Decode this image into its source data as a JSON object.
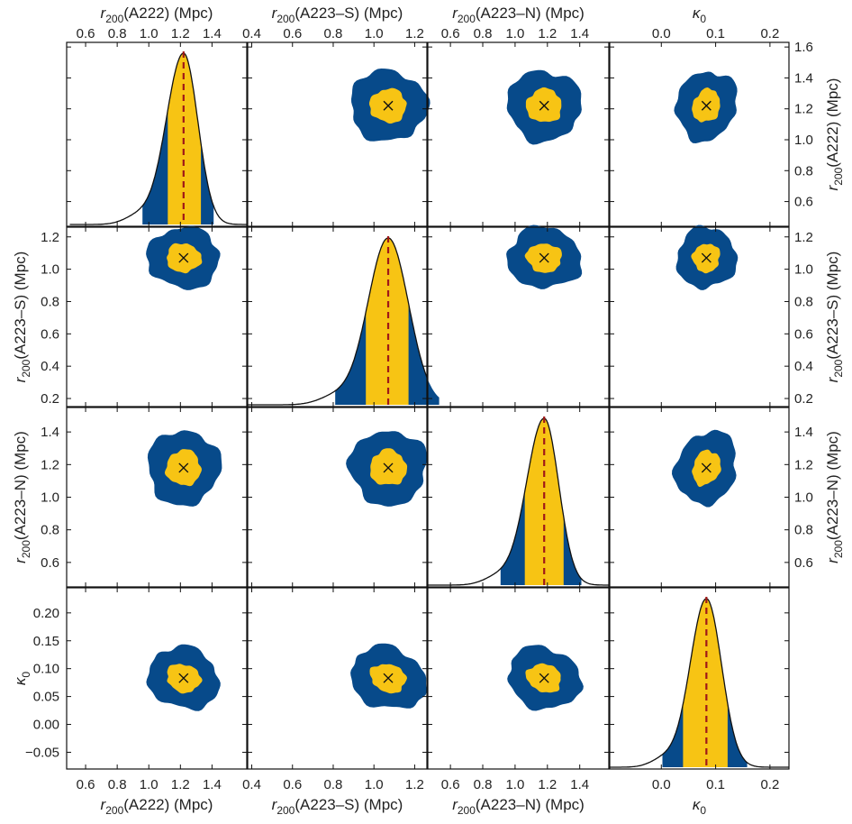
{
  "chart_data": {
    "type": "corner",
    "colors": {
      "inner": "#F7C414",
      "outer": "#074A8A",
      "line": "#111111",
      "median": "#A01818",
      "marker": "#111111",
      "frame": "#111111"
    },
    "labels": {
      "p0": {
        "sym": "r",
        "sub": "200",
        "rest": "(A222) (Mpc)",
        "short": "(A222)"
      },
      "p1": {
        "sym": "r",
        "sub": "200",
        "rest": "(A223–S) (Mpc)",
        "short": "(A223–S)"
      },
      "p2": {
        "sym": "r",
        "sub": "200",
        "rest": "(A223–N) (Mpc)",
        "short": "(A223–N)"
      },
      "p3": {
        "sym": "κ",
        "sub": "0",
        "rest": "",
        "short": ""
      }
    },
    "params": [
      {
        "name": "r200(A222)",
        "unit": "Mpc",
        "col_range": [
          0.48,
          1.62
        ],
        "row_range": [
          0.44,
          1.63
        ],
        "col_ticks": [
          "0.6",
          "0.8",
          "1.0",
          "1.2",
          "1.4"
        ],
        "row_ticks": [
          "0.6",
          "0.8",
          "1.0",
          "1.2",
          "1.4",
          "1.6"
        ],
        "best": 1.22,
        "contours": {
          "inner_rx": 0.11,
          "outer_rx": 0.23
        },
        "posterior": {
          "peak": 1.22,
          "sigma_left": 0.11,
          "sigma_right": 0.09,
          "inner": [
            1.12,
            1.33
          ],
          "outer": [
            0.96,
            1.41
          ],
          "tail_left": 0.5,
          "tail_right": 1.62
        }
      },
      {
        "name": "r200(A223-S)",
        "unit": "Mpc",
        "col_range": [
          0.38,
          1.26
        ],
        "row_range": [
          0.15,
          1.26
        ],
        "col_ticks": [
          "0.4",
          "0.6",
          "0.8",
          "1.0",
          "1.2"
        ],
        "row_ticks": [
          "0.2",
          "0.4",
          "0.6",
          "0.8",
          "1.0",
          "1.2"
        ],
        "best": 1.07,
        "contours": {
          "inner_rx": 0.09,
          "outer_rx": 0.19
        },
        "posterior": {
          "peak": 1.07,
          "sigma_left": 0.1,
          "sigma_right": 0.1,
          "inner": [
            0.96,
            1.17
          ],
          "outer": [
            0.81,
            1.32
          ],
          "tail_left": 0.38,
          "tail_right": 1.26
        }
      },
      {
        "name": "r200(A223-N)",
        "unit": "Mpc",
        "col_range": [
          0.46,
          1.58
        ],
        "row_range": [
          0.45,
          1.55
        ],
        "col_ticks": [
          "0.6",
          "0.8",
          "1.0",
          "1.2",
          "1.4"
        ],
        "row_ticks": [
          "0.6",
          "0.8",
          "1.0",
          "1.2",
          "1.4"
        ],
        "best": 1.18,
        "contours": {
          "inner_rx": 0.11,
          "outer_rx": 0.23
        },
        "posterior": {
          "peak": 1.18,
          "sigma_left": 0.11,
          "sigma_right": 0.09,
          "inner": [
            1.06,
            1.3
          ],
          "outer": [
            0.91,
            1.41
          ],
          "tail_left": 0.46,
          "tail_right": 1.58
        }
      },
      {
        "name": "kappa0",
        "unit": "",
        "col_range": [
          -0.095,
          0.235
        ],
        "row_range": [
          -0.08,
          0.245
        ],
        "col_ticks": [
          "0.0",
          "0.1",
          "0.2"
        ],
        "row_ticks": [
          "−0.05",
          "0.00",
          "0.05",
          "0.10",
          "0.15",
          "0.20"
        ],
        "best": 0.083,
        "contours": {
          "inner_rx": 0.025,
          "outer_rx": 0.055
        },
        "posterior": {
          "peak": 0.083,
          "sigma_left": 0.03,
          "sigma_right": 0.028,
          "inner": [
            0.04,
            0.122
          ],
          "outer": [
            0.002,
            0.158
          ],
          "tail_left": -0.095,
          "tail_right": 0.235
        }
      }
    ]
  }
}
